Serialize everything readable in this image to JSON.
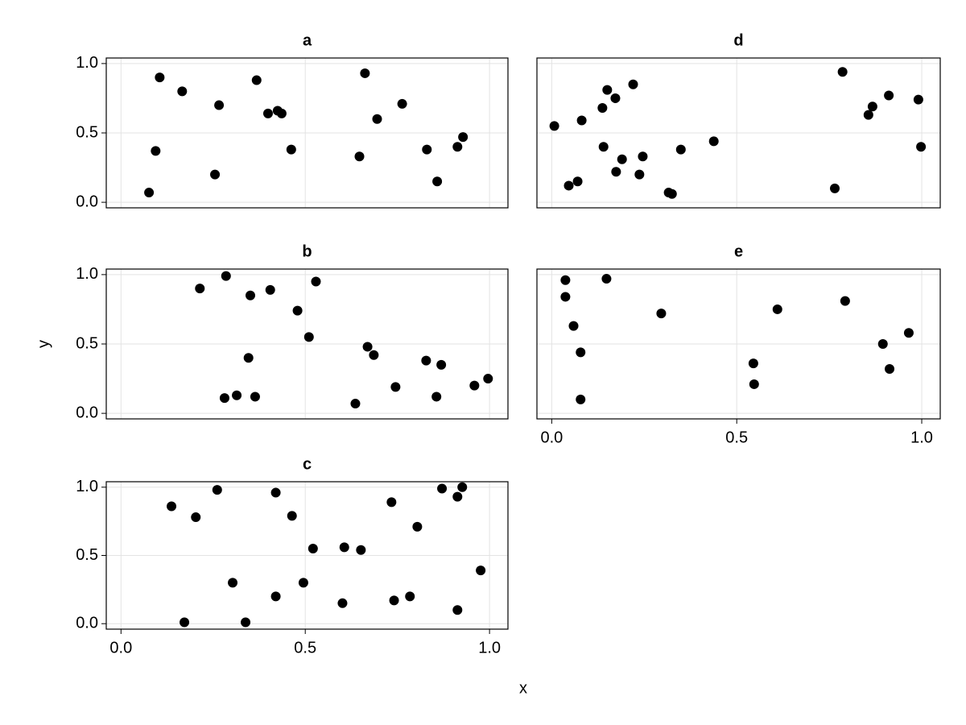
{
  "xlabel": "x",
  "ylabel": "y",
  "chart_data": [
    {
      "type": "scatter",
      "title": "a",
      "color": "#000000",
      "grid": true,
      "x": [
        0.076,
        0.094,
        0.105,
        0.166,
        0.255,
        0.266,
        0.368,
        0.399,
        0.425,
        0.436,
        0.462,
        0.647,
        0.662,
        0.695,
        0.763,
        0.83,
        0.858,
        0.913,
        0.928
      ],
      "y": [
        0.07,
        0.37,
        0.9,
        0.8,
        0.2,
        0.7,
        0.88,
        0.64,
        0.66,
        0.64,
        0.38,
        0.33,
        0.93,
        0.6,
        0.71,
        0.38,
        0.15,
        0.4,
        0.47
      ],
      "xlim": [
        -0.04,
        1.05
      ],
      "ylim": [
        -0.04,
        1.04
      ],
      "xticks": [
        0,
        0.5,
        1
      ],
      "yticks": [
        {
          "value": 0,
          "label": "0.0"
        },
        {
          "value": 0.5,
          "label": "0.5"
        },
        {
          "value": 1,
          "label": "1.0"
        }
      ]
    },
    {
      "type": "scatter",
      "title": "b",
      "color": "#000000",
      "grid": true,
      "x": [
        0.214,
        0.285,
        0.281,
        0.314,
        0.351,
        0.346,
        0.364,
        0.405,
        0.479,
        0.51,
        0.529,
        0.636,
        0.669,
        0.686,
        0.745,
        0.828,
        0.856,
        0.869,
        0.959,
        0.996
      ],
      "y": [
        0.9,
        0.99,
        0.11,
        0.13,
        0.85,
        0.4,
        0.12,
        0.89,
        0.74,
        0.55,
        0.95,
        0.07,
        0.48,
        0.42,
        0.19,
        0.38,
        0.12,
        0.35,
        0.2,
        0.25
      ],
      "xlim": [
        -0.04,
        1.05
      ],
      "ylim": [
        -0.04,
        1.04
      ],
      "xticks": [
        0,
        0.5,
        1
      ],
      "yticks": [
        {
          "value": 0,
          "label": "0.0"
        },
        {
          "value": 0.5,
          "label": "0.5"
        },
        {
          "value": 1,
          "label": "1.0"
        }
      ]
    },
    {
      "type": "scatter",
      "title": "c",
      "color": "#000000",
      "grid": true,
      "x": [
        0.137,
        0.172,
        0.203,
        0.261,
        0.303,
        0.338,
        0.42,
        0.42,
        0.464,
        0.495,
        0.521,
        0.601,
        0.606,
        0.651,
        0.734,
        0.741,
        0.784,
        0.804,
        0.871,
        0.913,
        0.926,
        0.913,
        0.976
      ],
      "y": [
        0.86,
        0.01,
        0.78,
        0.98,
        0.3,
        0.01,
        0.96,
        0.2,
        0.79,
        0.3,
        0.55,
        0.15,
        0.56,
        0.54,
        0.89,
        0.17,
        0.2,
        0.71,
        0.99,
        0.93,
        1.0,
        0.1,
        0.39
      ],
      "xlim": [
        -0.04,
        1.05
      ],
      "ylim": [
        -0.04,
        1.04
      ],
      "xticks": [
        {
          "value": 0,
          "label": "0.0"
        },
        {
          "value": 0.5,
          "label": "0.5"
        },
        {
          "value": 1,
          "label": "1.0"
        }
      ],
      "yticks": [
        {
          "value": 0,
          "label": "0.0"
        },
        {
          "value": 0.5,
          "label": "0.5"
        },
        {
          "value": 1,
          "label": "1.0"
        }
      ]
    },
    {
      "type": "scatter",
      "title": "d",
      "color": "#000000",
      "grid": true,
      "x": [
        0.007,
        0.046,
        0.07,
        0.081,
        0.137,
        0.14,
        0.15,
        0.172,
        0.174,
        0.19,
        0.237,
        0.246,
        0.22,
        0.316,
        0.325,
        0.349,
        0.438,
        0.786,
        0.765,
        0.856,
        0.867,
        0.911,
        0.991,
        0.998
      ],
      "y": [
        0.55,
        0.12,
        0.15,
        0.59,
        0.68,
        0.4,
        0.81,
        0.75,
        0.22,
        0.31,
        0.2,
        0.33,
        0.85,
        0.07,
        0.06,
        0.38,
        0.44,
        0.94,
        0.1,
        0.63,
        0.69,
        0.77,
        0.74,
        0.4
      ],
      "xlim": [
        -0.04,
        1.05
      ],
      "ylim": [
        -0.04,
        1.04
      ],
      "xticks": [
        0,
        0.5,
        1
      ],
      "yticks": [
        0,
        0.5,
        1
      ]
    },
    {
      "type": "scatter",
      "title": "e",
      "color": "#000000",
      "grid": true,
      "x": [
        0.037,
        0.037,
        0.059,
        0.078,
        0.078,
        0.148,
        0.296,
        0.545,
        0.547,
        0.61,
        0.793,
        0.895,
        0.913,
        0.965
      ],
      "y": [
        0.96,
        0.84,
        0.63,
        0.44,
        0.1,
        0.97,
        0.72,
        0.36,
        0.21,
        0.75,
        0.81,
        0.5,
        0.32,
        0.58
      ],
      "xlim": [
        -0.04,
        1.05
      ],
      "ylim": [
        -0.04,
        1.04
      ],
      "xticks": [
        {
          "value": 0,
          "label": "0.0"
        },
        {
          "value": 0.5,
          "label": "0.5"
        },
        {
          "value": 1,
          "label": "1.0"
        }
      ],
      "yticks": [
        0,
        0.5,
        1
      ]
    }
  ]
}
